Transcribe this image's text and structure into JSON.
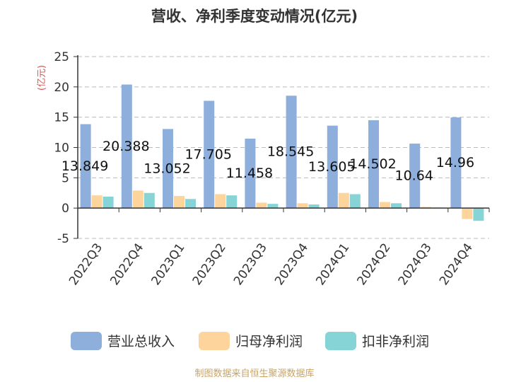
{
  "chart_data": {
    "type": "bar",
    "title": "营收、净利季度变动情况(亿元)",
    "ylabel": "(亿元)",
    "ylim": [
      -5,
      25
    ],
    "yticks": [
      -5,
      0,
      5,
      10,
      15,
      20,
      25
    ],
    "grid": true,
    "legend_position": "bottom",
    "categories": [
      "2022Q3",
      "2022Q4",
      "2023Q1",
      "2023Q2",
      "2023Q3",
      "2023Q4",
      "2024Q1",
      "2024Q2",
      "2024Q3",
      "2024Q4"
    ],
    "series": [
      {
        "name": "营业总收入",
        "color": "#8eaedc",
        "values": [
          13.849,
          20.388,
          13.052,
          17.705,
          11.458,
          18.545,
          13.605,
          14.502,
          10.64,
          14.96
        ],
        "labels": [
          "13.849",
          "20.388",
          "13.052",
          "17.705",
          "11.458",
          "18.545",
          "13.605",
          "14.502",
          "10.64",
          "14.96"
        ]
      },
      {
        "name": "归母净利润",
        "color": "#fdd49b",
        "values": [
          2.1,
          2.9,
          2.0,
          2.3,
          0.9,
          0.8,
          2.5,
          1.0,
          0.2,
          -1.8
        ]
      },
      {
        "name": "扣非净利润",
        "color": "#86d4d6",
        "values": [
          1.9,
          2.5,
          1.5,
          2.1,
          0.7,
          0.6,
          2.3,
          0.8,
          0.1,
          -2.1
        ]
      }
    ]
  },
  "footer": {
    "source": "制图数据来自恒生聚源数据库"
  }
}
